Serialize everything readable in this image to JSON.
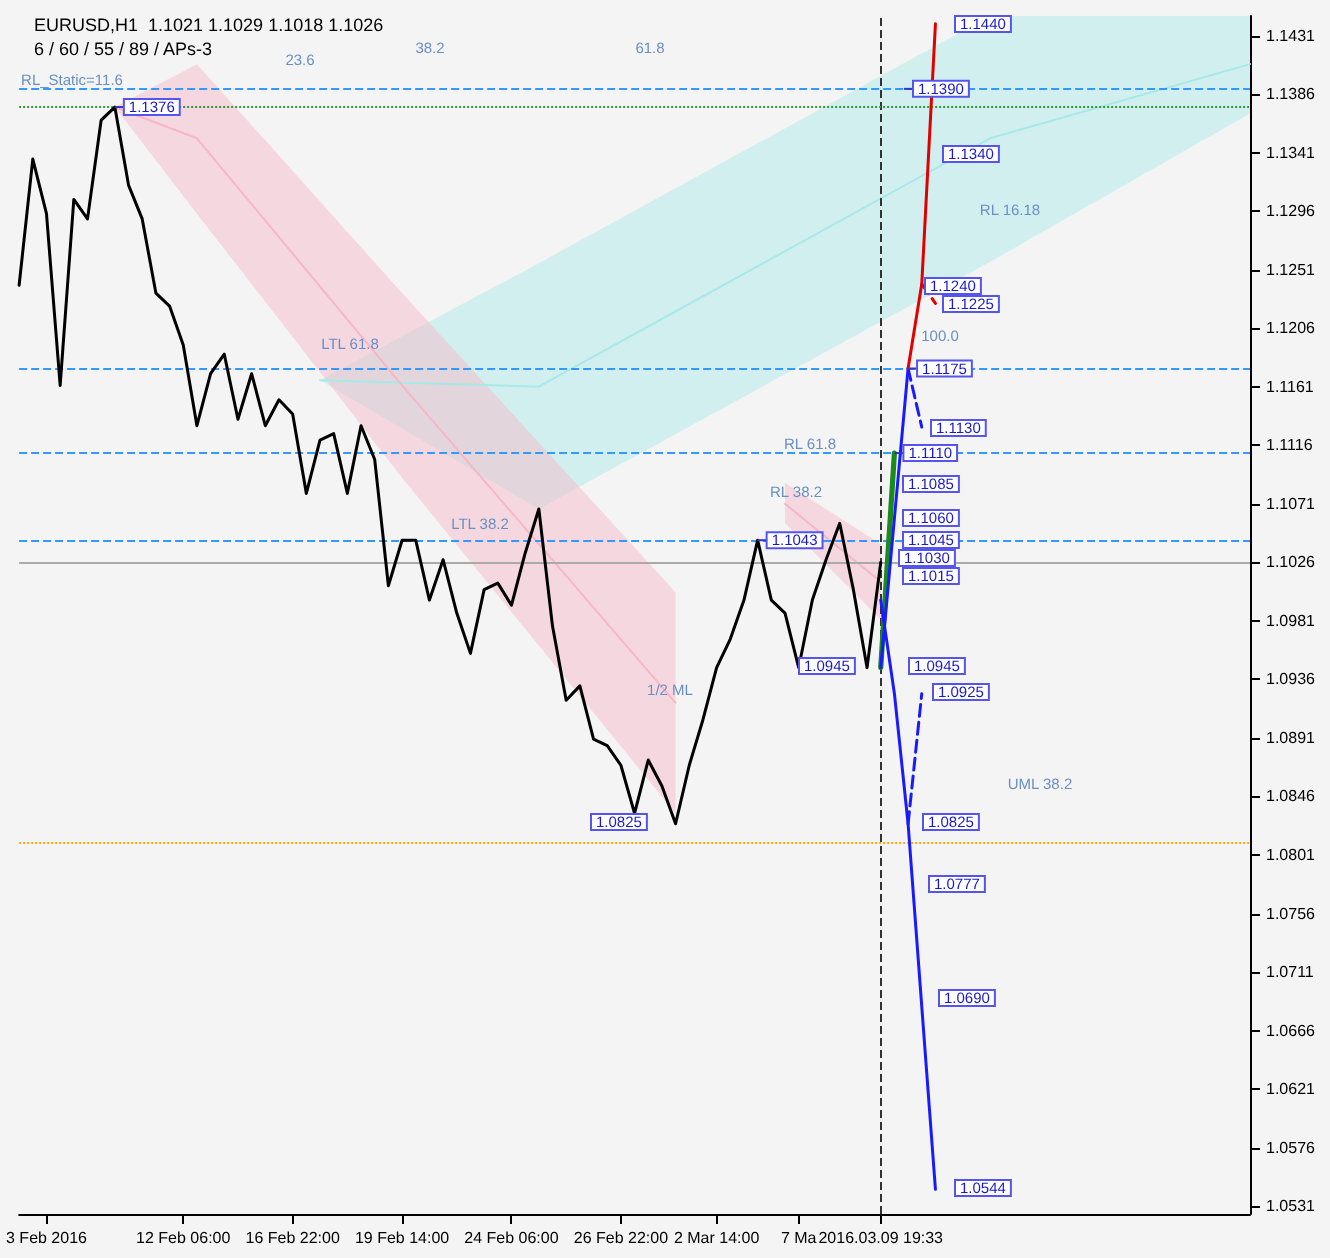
{
  "chart_data": {
    "type": "line",
    "title": "EURUSD,H1  1.1021 1.1029 1.1018 1.1026",
    "subtitle": "6 / 60 / 55 / 89 / APs-3",
    "categories": [
      null,
      null,
      "3 Feb 2016",
      null,
      null,
      null,
      null,
      null,
      null,
      null,
      null,
      null,
      "12 Feb 06:00",
      null,
      null,
      null,
      null,
      null,
      null,
      null,
      "16 Feb 22:00",
      null,
      null,
      null,
      null,
      null,
      null,
      null,
      "19 Feb 14:00",
      null,
      null,
      null,
      null,
      null,
      null,
      null,
      "24 Feb 06:00",
      null,
      null,
      null,
      null,
      null,
      null,
      null,
      "26 Feb 22:00",
      null,
      null,
      null,
      null,
      null,
      null,
      "2 Mar 14:00",
      null,
      null,
      null,
      null,
      null,
      "7 Ma",
      null,
      null,
      null,
      null,
      null,
      "2016.03.09 19:33",
      null,
      null,
      null,
      null,
      null,
      null,
      null,
      null,
      null,
      null,
      null,
      null,
      null,
      null,
      null,
      null,
      null,
      null,
      null,
      null,
      null,
      null,
      null,
      null,
      null,
      null,
      null
    ],
    "ylim": [
      1.0525,
      1.1446
    ],
    "yticks": [
      1.0531,
      1.0576,
      1.0621,
      1.0666,
      1.0711,
      1.0756,
      1.0801,
      1.0846,
      1.0891,
      1.0936,
      1.0981,
      1.1026,
      1.1071,
      1.1116,
      1.1161,
      1.1206,
      1.1251,
      1.1296,
      1.1341,
      1.1386,
      1.1431
    ],
    "grid": false,
    "marker": "none",
    "series": [
      {
        "color": "#a8e8e8",
        "line_style": "solid",
        "values": [
          null,
          null,
          null,
          null,
          null,
          null,
          null,
          null,
          null,
          null,
          null,
          null,
          null,
          null,
          null,
          null,
          null,
          null,
          null,
          null,
          null,
          null,
          1.1166,
          null,
          null,
          null,
          null,
          null,
          null,
          null,
          null,
          null,
          null,
          null,
          null,
          null,
          null,
          null,
          1.1161,
          null,
          null,
          null,
          null,
          null,
          null,
          null,
          null,
          null,
          null,
          null,
          null,
          null,
          null,
          null,
          null,
          null,
          null,
          null,
          null,
          null,
          null,
          null,
          null,
          null,
          null,
          null,
          null,
          null,
          null,
          null,
          null,
          1.1352,
          null,
          null,
          null,
          null,
          null,
          null,
          null,
          null,
          null,
          null,
          null,
          null,
          null,
          null,
          null,
          null,
          null,
          null,
          1.1409
        ],
        "lower": [
          null,
          null,
          null,
          null,
          null,
          null,
          null,
          null,
          null,
          null,
          null,
          null,
          null,
          null,
          null,
          null,
          null,
          null,
          null,
          null,
          null,
          null,
          1.1166,
          null,
          null,
          null,
          null,
          null,
          null,
          null,
          null,
          null,
          null,
          null,
          null,
          null,
          null,
          null,
          1.1067,
          null,
          null,
          null,
          null,
          null,
          null,
          null,
          null,
          null,
          null,
          null,
          null,
          null,
          null,
          null,
          null,
          null,
          null,
          null,
          null,
          null,
          null,
          null,
          null,
          null,
          null,
          null,
          null,
          null,
          null,
          null,
          null,
          1.1257,
          null,
          null,
          null,
          null,
          null,
          null,
          null,
          null,
          null,
          null,
          null,
          null,
          null,
          null,
          null,
          null,
          null,
          null,
          1.1371
        ],
        "upper": [
          null,
          null,
          null,
          null,
          null,
          null,
          null,
          null,
          null,
          null,
          null,
          null,
          null,
          null,
          null,
          null,
          null,
          null,
          null,
          null,
          null,
          null,
          1.1166,
          null,
          null,
          null,
          null,
          null,
          null,
          null,
          null,
          null,
          null,
          null,
          null,
          null,
          null,
          null,
          1.1256,
          null,
          null,
          null,
          null,
          null,
          null,
          null,
          null,
          null,
          null,
          null,
          null,
          null,
          null,
          null,
          null,
          null,
          null,
          null,
          null,
          null,
          null,
          null,
          null,
          null,
          null,
          null,
          null,
          null,
          null,
          null,
          null,
          1.1446,
          null,
          null,
          null,
          null,
          null,
          null,
          null,
          null,
          null,
          null,
          null,
          null,
          null,
          null,
          null,
          null,
          null,
          null,
          1.1446
        ]
      },
      {
        "color": "#f7b6c6",
        "line_style": "solid",
        "values": [
          null,
          null,
          null,
          null,
          null,
          null,
          null,
          1.1376,
          null,
          null,
          null,
          null,
          null,
          1.1352,
          null,
          null,
          null,
          null,
          null,
          null,
          null,
          null,
          null,
          null,
          null,
          null,
          null,
          null,
          1.1162,
          null,
          null,
          null,
          null,
          null,
          null,
          null,
          null,
          null,
          null,
          null,
          null,
          null,
          null,
          null,
          null,
          null,
          null,
          null,
          1.0918,
          null,
          null,
          null,
          null,
          null,
          null,
          null,
          null,
          null,
          null,
          null,
          null,
          null,
          null,
          null,
          null,
          null,
          null,
          null,
          null,
          null,
          null,
          null,
          null,
          null,
          null,
          null,
          null,
          null,
          null,
          null,
          null,
          null,
          null,
          null,
          null,
          null,
          null,
          null,
          null,
          null,
          null
        ],
        "lower": [
          null,
          null,
          null,
          null,
          null,
          null,
          null,
          1.1376,
          null,
          null,
          null,
          null,
          null,
          1.1294,
          null,
          null,
          null,
          null,
          null,
          null,
          null,
          null,
          null,
          null,
          null,
          null,
          null,
          null,
          1.1091,
          null,
          null,
          null,
          null,
          null,
          null,
          null,
          null,
          null,
          null,
          null,
          null,
          null,
          null,
          null,
          null,
          null,
          null,
          null,
          1.0833,
          null,
          null,
          null,
          null,
          null,
          null,
          null,
          null,
          null,
          null,
          null,
          null,
          null,
          null,
          null,
          null,
          null,
          null,
          null,
          null,
          null,
          null,
          null,
          null,
          null,
          null,
          null,
          null,
          null,
          null,
          null,
          null,
          null,
          null,
          null,
          null,
          null,
          null,
          null,
          null,
          null,
          null
        ],
        "upper": [
          null,
          null,
          null,
          null,
          null,
          null,
          null,
          1.1376,
          null,
          null,
          null,
          null,
          null,
          1.1409,
          null,
          null,
          null,
          null,
          null,
          null,
          null,
          null,
          null,
          null,
          null,
          null,
          null,
          null,
          1.1233,
          null,
          null,
          null,
          null,
          null,
          null,
          null,
          null,
          null,
          null,
          null,
          null,
          null,
          null,
          null,
          null,
          null,
          null,
          null,
          1.1003,
          null,
          null,
          null,
          null,
          null,
          null,
          null,
          null,
          null,
          null,
          null,
          null,
          null,
          null,
          null,
          null,
          null,
          null,
          null,
          null,
          null,
          null,
          null,
          null,
          null,
          null,
          null,
          null,
          null,
          null,
          null,
          null,
          null,
          null,
          null,
          null,
          null,
          null,
          null,
          null,
          null,
          null
        ]
      },
      {
        "color": "#f7b6c6",
        "line_style": "solid",
        "values": [
          null,
          null,
          null,
          null,
          null,
          null,
          null,
          null,
          null,
          null,
          null,
          null,
          null,
          null,
          null,
          null,
          null,
          null,
          null,
          null,
          null,
          null,
          null,
          null,
          null,
          null,
          null,
          null,
          null,
          null,
          null,
          null,
          null,
          null,
          null,
          null,
          null,
          null,
          null,
          null,
          null,
          null,
          null,
          null,
          null,
          null,
          null,
          null,
          null,
          null,
          null,
          null,
          null,
          null,
          null,
          null,
          1.1071,
          null,
          null,
          null,
          null,
          null,
          null,
          1.1011,
          null,
          null,
          null,
          null,
          null,
          null,
          null,
          null,
          null,
          null,
          null,
          null,
          null,
          null,
          null,
          null,
          null,
          null,
          null,
          null,
          null,
          null,
          null,
          null,
          null,
          null,
          null
        ],
        "lower": [
          null,
          null,
          null,
          null,
          null,
          null,
          null,
          null,
          null,
          null,
          null,
          null,
          null,
          null,
          null,
          null,
          null,
          null,
          null,
          null,
          null,
          null,
          null,
          null,
          null,
          null,
          null,
          null,
          null,
          null,
          null,
          null,
          null,
          null,
          null,
          null,
          null,
          null,
          null,
          null,
          null,
          null,
          null,
          null,
          null,
          null,
          null,
          null,
          null,
          null,
          null,
          null,
          null,
          null,
          null,
          null,
          1.1056,
          null,
          null,
          null,
          null,
          null,
          null,
          1.0982,
          null,
          null,
          null,
          null,
          null,
          null,
          null,
          null,
          null,
          null,
          null,
          null,
          null,
          null,
          null,
          null,
          null,
          null,
          null,
          null,
          null,
          null,
          null,
          null,
          null,
          null,
          null
        ],
        "upper": [
          null,
          null,
          null,
          null,
          null,
          null,
          null,
          null,
          null,
          null,
          null,
          null,
          null,
          null,
          null,
          null,
          null,
          null,
          null,
          null,
          null,
          null,
          null,
          null,
          null,
          null,
          null,
          null,
          null,
          null,
          null,
          null,
          null,
          null,
          null,
          null,
          null,
          null,
          null,
          null,
          null,
          null,
          null,
          null,
          null,
          null,
          null,
          null,
          null,
          null,
          null,
          null,
          null,
          null,
          null,
          null,
          1.1087,
          null,
          null,
          null,
          null,
          null,
          null,
          1.104,
          null,
          null,
          null,
          null,
          null,
          null,
          null,
          null,
          null,
          null,
          null,
          null,
          null,
          null,
          null,
          null,
          null,
          null,
          null,
          null,
          null,
          null,
          null,
          null,
          null,
          null,
          null
        ]
      },
      {
        "color": "#000000",
        "line_style": "solid",
        "values": [
          1.1239,
          1.1336,
          1.1294,
          1.1162,
          1.1305,
          1.129,
          1.1366,
          1.1376,
          1.1316,
          1.129,
          1.1233,
          1.1223,
          1.1193,
          1.1131,
          1.1171,
          1.1186,
          1.1136,
          1.1171,
          1.1131,
          1.1151,
          1.114,
          1.1079,
          1.112,
          1.1125,
          1.1079,
          1.1131,
          1.1105,
          1.1008,
          1.1043,
          1.1043,
          1.0997,
          1.1028,
          1.0987,
          1.0956,
          1.1005,
          1.101,
          1.0993,
          1.1033,
          1.1067,
          1.0977,
          1.092,
          1.0931,
          1.089,
          1.0885,
          1.087,
          1.0833,
          1.0874,
          1.0854,
          1.0825,
          1.087,
          1.0905,
          1.0945,
          1.0967,
          1.0997,
          1.1043,
          1.0997,
          1.0987,
          1.0945,
          1.0997,
          1.1028,
          1.1056,
          1.1005,
          1.0945,
          1.1026,
          null,
          null,
          null,
          null,
          null,
          null,
          null,
          null,
          null,
          null,
          null,
          null,
          null,
          null,
          null,
          null,
          null,
          null,
          null,
          null,
          null,
          null,
          null,
          null,
          null,
          null,
          null
        ]
      },
      {
        "color": "#1a8a1a",
        "line_style": "solid",
        "values": [
          null,
          null,
          null,
          null,
          null,
          null,
          null,
          null,
          null,
          null,
          null,
          null,
          null,
          null,
          null,
          null,
          null,
          null,
          null,
          null,
          null,
          null,
          null,
          null,
          null,
          null,
          null,
          null,
          null,
          null,
          null,
          null,
          null,
          null,
          null,
          null,
          null,
          null,
          null,
          null,
          null,
          null,
          null,
          null,
          null,
          null,
          null,
          null,
          null,
          null,
          null,
          null,
          null,
          null,
          null,
          null,
          null,
          null,
          null,
          null,
          null,
          null,
          null,
          1.0945,
          1.111,
          null,
          null,
          null,
          null,
          null,
          null,
          null,
          null,
          null,
          null,
          null,
          null,
          null,
          null,
          null,
          null,
          null,
          null,
          null,
          null,
          null,
          null,
          null,
          null,
          null,
          null
        ]
      },
      {
        "color": "#1a1aff",
        "line_style": "solid",
        "values": [
          null,
          null,
          null,
          null,
          null,
          null,
          null,
          null,
          null,
          null,
          null,
          null,
          null,
          null,
          null,
          null,
          null,
          null,
          null,
          null,
          null,
          null,
          null,
          null,
          null,
          null,
          null,
          null,
          null,
          null,
          null,
          null,
          null,
          null,
          null,
          null,
          null,
          null,
          null,
          null,
          null,
          null,
          null,
          null,
          null,
          null,
          null,
          null,
          null,
          null,
          null,
          null,
          null,
          null,
          null,
          null,
          null,
          null,
          null,
          null,
          null,
          null,
          null,
          1.0945,
          null,
          1.1175,
          null,
          null,
          null,
          null,
          null,
          null,
          null,
          null,
          null,
          null,
          null,
          null,
          null,
          null,
          null,
          null,
          null,
          null,
          null,
          null,
          null,
          null,
          null,
          null,
          null
        ]
      },
      {
        "color": "#1a1aff",
        "line_style": "dashed",
        "values": [
          null,
          null,
          null,
          null,
          null,
          null,
          null,
          null,
          null,
          null,
          null,
          null,
          null,
          null,
          null,
          null,
          null,
          null,
          null,
          null,
          null,
          null,
          null,
          null,
          null,
          null,
          null,
          null,
          null,
          null,
          null,
          null,
          null,
          null,
          null,
          null,
          null,
          null,
          null,
          null,
          null,
          null,
          null,
          null,
          null,
          null,
          null,
          null,
          null,
          null,
          null,
          null,
          null,
          null,
          null,
          null,
          null,
          null,
          null,
          null,
          null,
          null,
          null,
          null,
          null,
          1.1175,
          1.113,
          null,
          null,
          null,
          null,
          null,
          null,
          null,
          null,
          null,
          null,
          null,
          null,
          null,
          null,
          null,
          null,
          null,
          null,
          null,
          null,
          null,
          null,
          null,
          null
        ]
      },
      {
        "color": "#e00000",
        "line_style": "solid",
        "values": [
          null,
          null,
          null,
          null,
          null,
          null,
          null,
          null,
          null,
          null,
          null,
          null,
          null,
          null,
          null,
          null,
          null,
          null,
          null,
          null,
          null,
          null,
          null,
          null,
          null,
          null,
          null,
          null,
          null,
          null,
          null,
          null,
          null,
          null,
          null,
          null,
          null,
          null,
          null,
          null,
          null,
          null,
          null,
          null,
          null,
          null,
          null,
          null,
          null,
          null,
          null,
          null,
          null,
          null,
          null,
          null,
          null,
          null,
          null,
          null,
          null,
          null,
          null,
          null,
          null,
          1.1175,
          1.124,
          1.144,
          null,
          null,
          null,
          null,
          null,
          null,
          null,
          null,
          null,
          null,
          null,
          null,
          null,
          null,
          null,
          null,
          null,
          null,
          null,
          null,
          null,
          null,
          null
        ]
      },
      {
        "color": "#e00000",
        "line_style": "dashed",
        "values": [
          null,
          null,
          null,
          null,
          null,
          null,
          null,
          null,
          null,
          null,
          null,
          null,
          null,
          null,
          null,
          null,
          null,
          null,
          null,
          null,
          null,
          null,
          null,
          null,
          null,
          null,
          null,
          null,
          null,
          null,
          null,
          null,
          null,
          null,
          null,
          null,
          null,
          null,
          null,
          null,
          null,
          null,
          null,
          null,
          null,
          null,
          null,
          null,
          null,
          null,
          null,
          null,
          null,
          null,
          null,
          null,
          null,
          null,
          null,
          null,
          null,
          null,
          null,
          null,
          null,
          null,
          1.124,
          1.1225,
          null,
          null,
          null,
          null,
          null,
          null,
          null,
          null,
          null,
          null,
          null,
          null,
          null,
          null,
          null,
          null,
          null,
          null,
          null,
          null,
          null,
          null,
          null
        ]
      },
      {
        "color": "#1a1aff",
        "line_style": "solid",
        "values": [
          null,
          null,
          null,
          null,
          null,
          null,
          null,
          null,
          null,
          null,
          null,
          null,
          null,
          null,
          null,
          null,
          null,
          null,
          null,
          null,
          null,
          null,
          null,
          null,
          null,
          null,
          null,
          null,
          null,
          null,
          null,
          null,
          null,
          null,
          null,
          null,
          null,
          null,
          null,
          null,
          null,
          null,
          null,
          null,
          null,
          null,
          null,
          null,
          null,
          null,
          null,
          null,
          null,
          null,
          null,
          null,
          null,
          null,
          null,
          null,
          null,
          null,
          null,
          1.0997,
          1.0925,
          1.0825,
          null,
          1.0544,
          null,
          null,
          null,
          null,
          null,
          null,
          null,
          null,
          null,
          null,
          null,
          null,
          null,
          null,
          null,
          null,
          null,
          null,
          null,
          null,
          null,
          null,
          null
        ]
      },
      {
        "color": "#1a1aff",
        "line_style": "dashed",
        "values": [
          null,
          null,
          null,
          null,
          null,
          null,
          null,
          null,
          null,
          null,
          null,
          null,
          null,
          null,
          null,
          null,
          null,
          null,
          null,
          null,
          null,
          null,
          null,
          null,
          null,
          null,
          null,
          null,
          null,
          null,
          null,
          null,
          null,
          null,
          null,
          null,
          null,
          null,
          null,
          null,
          null,
          null,
          null,
          null,
          null,
          null,
          null,
          null,
          null,
          null,
          null,
          null,
          null,
          null,
          null,
          null,
          null,
          null,
          null,
          null,
          null,
          null,
          null,
          null,
          null,
          1.0825,
          1.0925,
          null,
          null,
          null,
          null,
          null,
          null,
          null,
          null,
          null,
          null,
          null,
          null,
          null,
          null,
          null,
          null,
          null,
          null,
          null,
          null,
          null,
          null,
          null,
          null
        ]
      }
    ],
    "ref_lines": [
      {
        "axis": "x",
        "value": "2016.03.09 19:33",
        "color": "#333333",
        "line_style": "dashed"
      },
      {
        "axis": "y",
        "value": 1.139,
        "color": "#3399ff",
        "line_style": "dashed"
      },
      {
        "axis": "y",
        "value": 1.1376,
        "color": "#339933",
        "line_style": "dotted"
      },
      {
        "axis": "y",
        "value": 1.1175,
        "color": "#3399ff",
        "line_style": "dashed"
      },
      {
        "axis": "y",
        "value": 1.111,
        "color": "#3399ff",
        "line_style": "dashed"
      },
      {
        "axis": "y",
        "value": 1.1043,
        "color": "#3399ff",
        "line_style": "dashed"
      },
      {
        "axis": "y",
        "value": 1.1026,
        "color": "#aaaaaa",
        "line_style": "solid"
      },
      {
        "axis": "y",
        "value": 1.081,
        "color": "#ffaa00",
        "line_style": "dotted"
      }
    ],
    "annotations": [
      {
        "text": "1.1390",
        "y": 1.139
      },
      {
        "text": "1.1376",
        "y": 1.1376
      },
      {
        "text": "1.1175",
        "y": 1.1175
      },
      {
        "text": "1.1110",
        "y": 1.111
      },
      {
        "text": "1.1043",
        "y": 1.1043
      },
      "1.1440",
      "1.1340",
      "1.1240",
      "1.1225",
      "1.1130",
      "1.1085",
      "1.1060",
      "1.1045",
      "1.1030",
      "1.1015",
      "1.0945",
      "1.0945",
      "1.0925",
      "1.0825",
      "1.0825",
      "1.0777",
      "1.0690",
      "1.0544",
      "RL_Static=11.6",
      "LTL 61.8",
      "LTL 38.2",
      "UML 38.2",
      "1/2 ML",
      "RL 16.18",
      "RL 61.8",
      "RL 38.2",
      "100.0",
      "23.6",
      "38.2",
      "61.8"
    ]
  }
}
